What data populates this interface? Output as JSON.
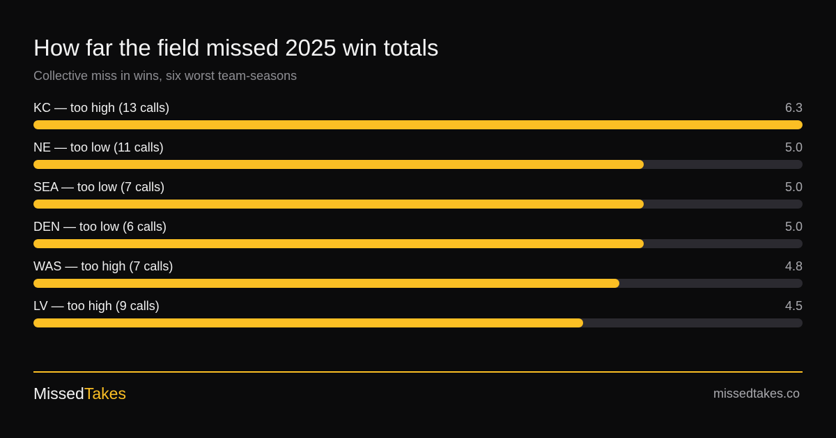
{
  "header": {
    "title": "How far the field missed 2025 win totals",
    "subtitle": "Collective miss in wins, six worst team-seasons"
  },
  "footer": {
    "brand_main": "Missed",
    "brand_accent": "Takes",
    "site": "missedtakes.co"
  },
  "colors": {
    "background": "#0b0b0c",
    "bar": "#fbbf24",
    "track": "#2b2a30",
    "accent": "#fbbf24"
  },
  "chart_data": {
    "type": "bar",
    "orientation": "horizontal",
    "title": "How far the field missed 2025 win totals",
    "subtitle": "Collective miss in wins, six worst team-seasons",
    "xlim": [
      0,
      6.3
    ],
    "grid": false,
    "categories": [
      "KC — too high (13 calls)",
      "NE — too low (11 calls)",
      "SEA — too low (7 calls)",
      "DEN — too low (6 calls)",
      "WAS  — too high (7 calls)",
      "LV  — too high (9 calls)"
    ],
    "values": [
      6.3,
      5.0,
      5.0,
      5.0,
      4.8,
      4.5
    ],
    "value_labels": [
      "6.3",
      "5.0",
      "5.0",
      "5.0",
      "4.8",
      "4.5"
    ]
  }
}
